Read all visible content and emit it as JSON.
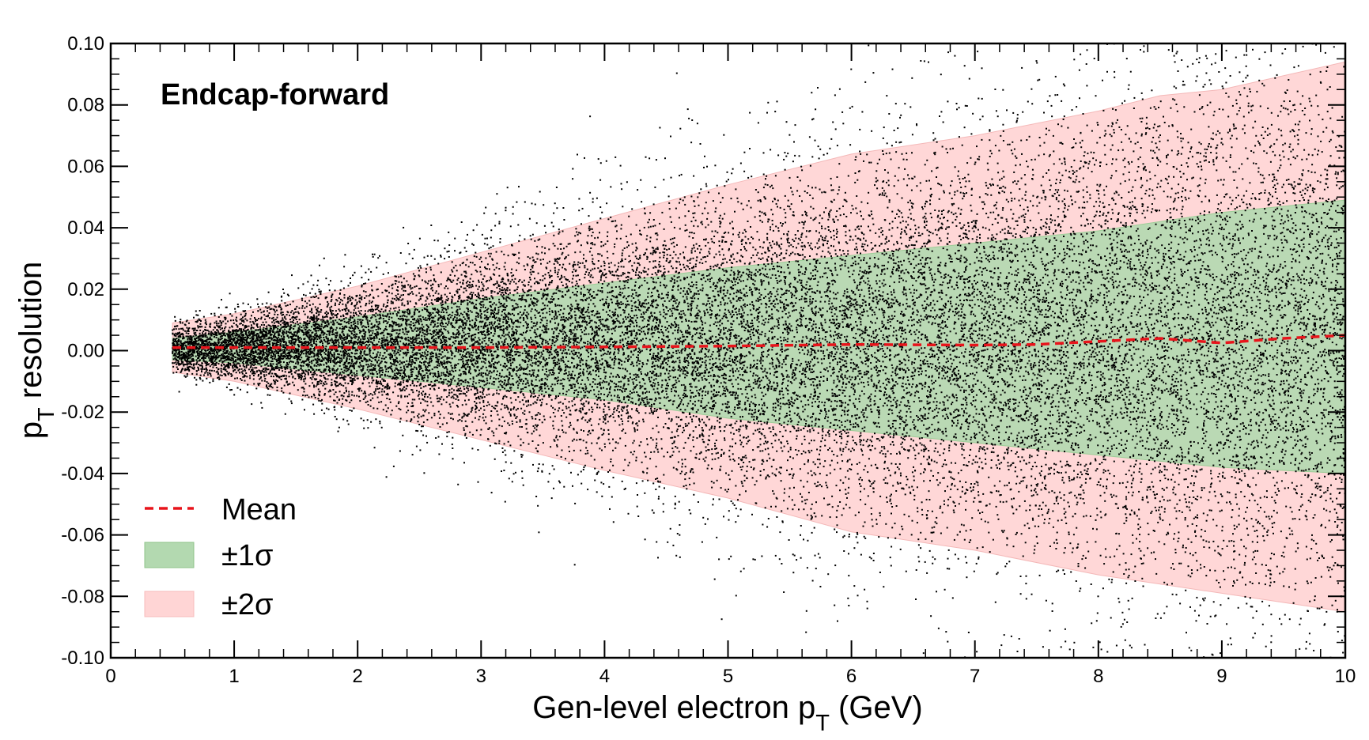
{
  "chart_data": {
    "type": "scatter",
    "title": "",
    "annotation": "Endcap-forward",
    "xlabel": "Gen-level electron p",
    "xlabel_sub": "T",
    "xlabel_unit": " (GeV)",
    "ylabel": "p",
    "ylabel_sub": "T",
    "ylabel_rest": " resolution",
    "xlim": [
      0,
      10
    ],
    "ylim": [
      -0.1,
      0.1
    ],
    "x_ticks": [
      0,
      1,
      2,
      3,
      4,
      5,
      6,
      7,
      8,
      9,
      10
    ],
    "x_tick_labels": [
      "0",
      "1",
      "2",
      "3",
      "4",
      "5",
      "6",
      "7",
      "8",
      "9",
      "10"
    ],
    "y_ticks": [
      -0.1,
      -0.08,
      -0.06,
      -0.04,
      -0.02,
      0.0,
      0.02,
      0.04,
      0.06,
      0.08,
      0.1
    ],
    "y_tick_labels": [
      "-0.10",
      "-0.08",
      "-0.06",
      "-0.04",
      "-0.02",
      "0.00",
      "0.02",
      "0.04",
      "0.06",
      "0.08",
      "0.10"
    ],
    "grid": false,
    "legend": {
      "placement": "bottom-left",
      "entries": [
        {
          "label": "Mean",
          "kind": "dashed-line",
          "color": "#e8141b"
        },
        {
          "label": "±1σ",
          "kind": "band",
          "color": "#b3d9b0"
        },
        {
          "label": "±2σ",
          "kind": "band",
          "color": "#ffd5d5"
        }
      ]
    },
    "scatter_color": "#000000",
    "band_1sigma": {
      "name": "±1σ",
      "color": "#b3d9b0",
      "x": [
        0.5,
        1,
        2,
        3,
        4,
        5,
        6,
        7,
        8,
        9,
        10
      ],
      "upper": [
        0.004,
        0.006,
        0.011,
        0.017,
        0.022,
        0.027,
        0.031,
        0.035,
        0.039,
        0.045,
        0.049
      ],
      "lower": [
        -0.003,
        -0.004,
        -0.008,
        -0.012,
        -0.016,
        -0.022,
        -0.026,
        -0.03,
        -0.034,
        -0.038,
        -0.04
      ]
    },
    "band_2sigma": {
      "name": "±2σ",
      "color": "#ffd5d5",
      "x": [
        0.5,
        1,
        2,
        3,
        4,
        5,
        6,
        7,
        8,
        8.5,
        9,
        10
      ],
      "upper": [
        0.009,
        0.012,
        0.021,
        0.032,
        0.043,
        0.054,
        0.064,
        0.07,
        0.078,
        0.083,
        0.085,
        0.094
      ],
      "lower": [
        -0.007,
        -0.01,
        -0.019,
        -0.029,
        -0.039,
        -0.048,
        -0.059,
        -0.065,
        -0.073,
        -0.076,
        -0.079,
        -0.085
      ]
    },
    "mean": {
      "name": "Mean",
      "color": "#e8141b",
      "x": [
        0.5,
        1,
        2,
        3,
        4,
        5,
        6,
        7,
        7.5,
        8,
        8.5,
        9,
        9.5,
        10
      ],
      "y": [
        0.001,
        0.001,
        0.001,
        0.001,
        0.0012,
        0.0015,
        0.002,
        0.0018,
        0.002,
        0.003,
        0.004,
        0.0025,
        0.004,
        0.005
      ]
    }
  }
}
